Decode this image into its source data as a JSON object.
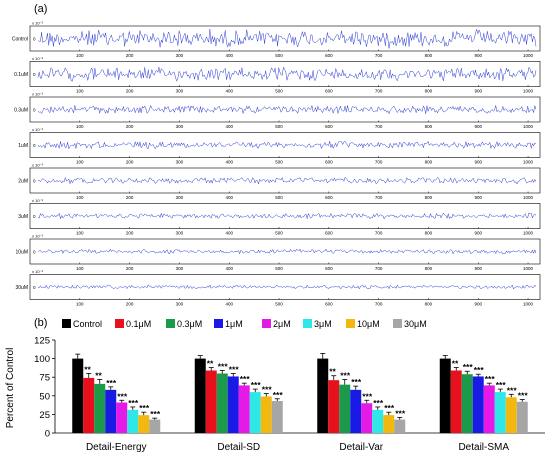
{
  "panel_a": {
    "label": "(a)",
    "traces": [
      {
        "name": "Control",
        "exponent": "x 10⁻⁵",
        "amp": 1.0
      },
      {
        "name": "0.1uM",
        "exponent": "x 10⁻⁵",
        "amp": 0.75
      },
      {
        "name": "0.3uM",
        "exponent": "x 10⁻⁵",
        "amp": 0.45
      },
      {
        "name": "1uM",
        "exponent": "x 10⁻⁵",
        "amp": 0.4
      },
      {
        "name": "2uM",
        "exponent": "x 10⁻⁵",
        "amp": 0.35
      },
      {
        "name": "3uM",
        "exponent": "x 10⁻⁵",
        "amp": 0.3
      },
      {
        "name": "10uM",
        "exponent": "x 10⁻⁵",
        "amp": 0.25
      },
      {
        "name": "30uM",
        "exponent": "x 10⁻⁵",
        "amp": 0.22
      }
    ],
    "y_tick": "0",
    "x_ticks": [
      "100",
      "200",
      "300",
      "400",
      "500",
      "600",
      "700",
      "800",
      "900",
      "1000"
    ],
    "x_max": 1024,
    "line_color": "#2b3bd6"
  },
  "chart_data": {
    "type": "bar",
    "label": "(b)",
    "ylabel": "Percent of Control",
    "ylim": [
      0,
      125
    ],
    "yticks": [
      "0",
      "25",
      "50",
      "75",
      "100",
      "125"
    ],
    "categories": [
      "Detail-Energy",
      "Detail-SD",
      "Detail-Var",
      "Detail-SMA"
    ],
    "series": [
      {
        "name": "Control",
        "color": "#000000",
        "values": [
          100,
          100,
          100,
          100
        ],
        "errors": [
          6,
          4,
          7,
          4
        ],
        "sig": [
          "",
          "",
          "",
          ""
        ]
      },
      {
        "name": "0.1μM",
        "color": "#e8101d",
        "values": [
          74,
          84,
          71,
          84
        ],
        "errors": [
          6,
          4,
          6,
          4
        ],
        "sig": [
          "**",
          "**",
          "**",
          "**"
        ]
      },
      {
        "name": "0.3μM",
        "color": "#1a9a4a",
        "values": [
          66,
          80,
          65,
          79
        ],
        "errors": [
          6,
          4,
          7,
          4
        ],
        "sig": [
          "**",
          "***",
          "***",
          "***"
        ]
      },
      {
        "name": "1μM",
        "color": "#1a1ae6",
        "values": [
          58,
          76,
          58,
          76
        ],
        "errors": [
          4,
          4,
          5,
          3
        ],
        "sig": [
          "***",
          "***",
          "***",
          "***"
        ]
      },
      {
        "name": "2μM",
        "color": "#e61ae6",
        "values": [
          41,
          64,
          40,
          64
        ],
        "errors": [
          3,
          3,
          4,
          3
        ],
        "sig": [
          "***",
          "***",
          "***",
          "***"
        ]
      },
      {
        "name": "3μM",
        "color": "#2ee8e8",
        "values": [
          31,
          55,
          31,
          55
        ],
        "errors": [
          4,
          4,
          4,
          4
        ],
        "sig": [
          "***",
          "***",
          "***",
          "***"
        ]
      },
      {
        "name": "10μM",
        "color": "#f2b80f",
        "values": [
          24,
          49,
          24,
          48
        ],
        "errors": [
          4,
          4,
          4,
          4
        ],
        "sig": [
          "***",
          "***",
          "***",
          "***"
        ]
      },
      {
        "name": "30μM",
        "color": "#a6a6a6",
        "values": [
          18,
          43,
          18,
          42
        ],
        "errors": [
          2,
          3,
          3,
          3
        ],
        "sig": [
          "***",
          "***",
          "***",
          "***"
        ]
      }
    ]
  }
}
